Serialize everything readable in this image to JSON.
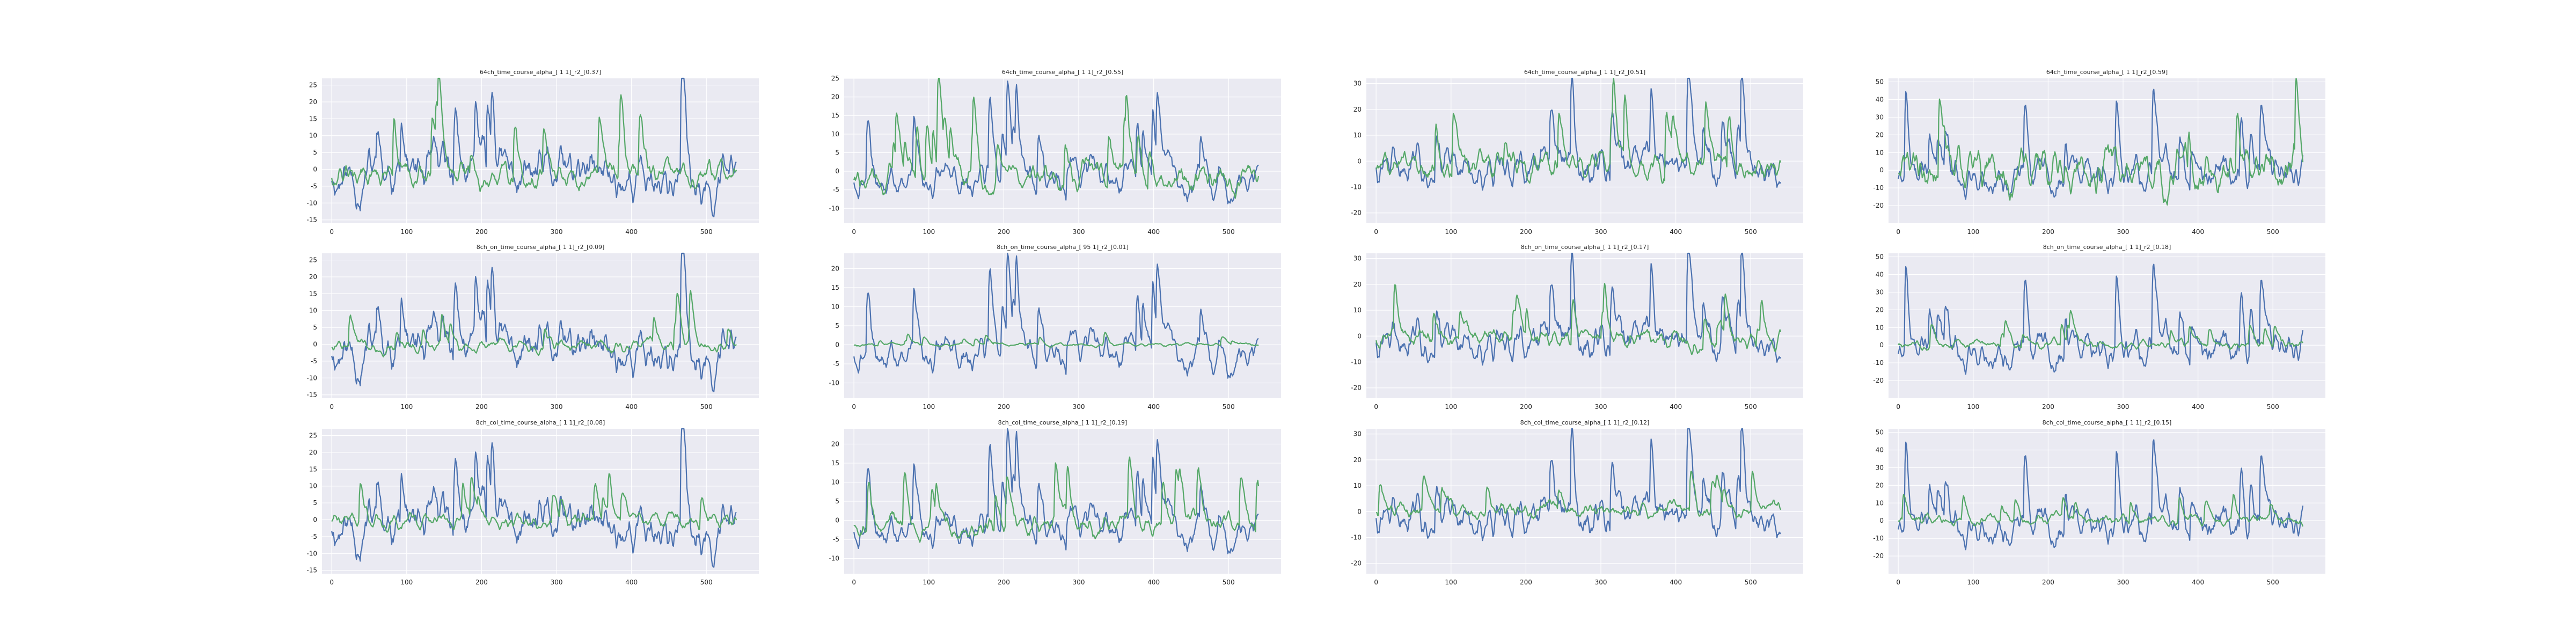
{
  "chart_data": [
    {
      "type": "line",
      "title": "64ch_time_course_alpha_[ 1 1]_r2_[0.37]",
      "xlim": [
        -13,
        570
      ],
      "ylim": [
        -16,
        27
      ],
      "xticks": [
        0,
        100,
        200,
        300,
        400,
        500
      ],
      "yticks": [
        -15,
        -10,
        -5,
        0,
        5,
        10,
        15,
        20,
        25
      ],
      "colors": [
        "#4c72b0",
        "#55a868"
      ],
      "n_points": 541,
      "series": [
        {
          "amp": 6.5,
          "mean": 0.5,
          "seed": 11
        },
        {
          "amp": 5.5,
          "mean": 0.5,
          "seed": 12
        }
      ]
    },
    {
      "type": "line",
      "title": "64ch_time_course_alpha_[ 1 1]_r2_[0.55]",
      "xlim": [
        -13,
        570
      ],
      "ylim": [
        -14,
        25
      ],
      "xticks": [
        0,
        100,
        200,
        300,
        400,
        500
      ],
      "yticks": [
        -10,
        -5,
        0,
        5,
        10,
        15,
        20,
        25
      ],
      "colors": [
        "#4c72b0",
        "#55a868"
      ],
      "n_points": 541,
      "series": [
        {
          "amp": 6,
          "mean": 0.5,
          "seed": 21
        },
        {
          "amp": 5.5,
          "mean": 1,
          "seed": 22
        }
      ]
    },
    {
      "type": "line",
      "title": "64ch_time_course_alpha_[ 1 1]_r2_[0.51]",
      "xlim": [
        -13,
        570
      ],
      "ylim": [
        -24,
        32
      ],
      "xticks": [
        0,
        100,
        200,
        300,
        400,
        500
      ],
      "yticks": [
        -20,
        -10,
        0,
        10,
        20,
        30
      ],
      "colors": [
        "#4c72b0",
        "#55a868"
      ],
      "n_points": 541,
      "series": [
        {
          "amp": 8,
          "mean": 1,
          "seed": 31
        },
        {
          "amp": 6.5,
          "mean": 1,
          "seed": 32
        }
      ]
    },
    {
      "type": "line",
      "title": "64ch_time_course_alpha_[ 1 1]_r2_[0.59]",
      "xlim": [
        -13,
        570
      ],
      "ylim": [
        -30,
        52
      ],
      "xticks": [
        0,
        100,
        200,
        300,
        400,
        500
      ],
      "yticks": [
        -20,
        -10,
        0,
        10,
        20,
        30,
        40,
        50
      ],
      "colors": [
        "#4c72b0",
        "#55a868"
      ],
      "n_points": 541,
      "series": [
        {
          "amp": 11,
          "mean": 2,
          "seed": 41
        },
        {
          "amp": 9.5,
          "mean": 2,
          "seed": 42
        }
      ]
    },
    {
      "type": "line",
      "title": "8ch_on_time_course_alpha_[ 1 1]_r2_[0.09]",
      "xlim": [
        -13,
        570
      ],
      "ylim": [
        -16,
        27
      ],
      "xticks": [
        0,
        100,
        200,
        300,
        400,
        500
      ],
      "yticks": [
        -15,
        -10,
        -5,
        0,
        5,
        10,
        15,
        20,
        25
      ],
      "colors": [
        "#4c72b0",
        "#55a868"
      ],
      "n_points": 541,
      "series": [
        {
          "amp": 6.5,
          "mean": 0.5,
          "seed": 11
        },
        {
          "amp": 2.8,
          "mean": 0.5,
          "seed": 52
        }
      ]
    },
    {
      "type": "line",
      "title": "8ch_on_time_course_alpha_[ 95 1]_r2_[0.01]",
      "xlim": [
        -13,
        570
      ],
      "ylim": [
        -14,
        24
      ],
      "xticks": [
        0,
        100,
        200,
        300,
        400,
        500
      ],
      "yticks": [
        -10,
        -5,
        0,
        5,
        10,
        15,
        20
      ],
      "colors": [
        "#4c72b0",
        "#55a868"
      ],
      "n_points": 541,
      "series": [
        {
          "amp": 6,
          "mean": 0.5,
          "seed": 21
        },
        {
          "amp": 0.6,
          "mean": 0.3,
          "seed": 62
        }
      ]
    },
    {
      "type": "line",
      "title": "8ch_on_time_course_alpha_[ 1 1]_r2_[0.17]",
      "xlim": [
        -13,
        570
      ],
      "ylim": [
        -24,
        32
      ],
      "xticks": [
        0,
        100,
        200,
        300,
        400,
        500
      ],
      "yticks": [
        -20,
        -10,
        0,
        10,
        20,
        30
      ],
      "colors": [
        "#4c72b0",
        "#55a868"
      ],
      "n_points": 541,
      "series": [
        {
          "amp": 8,
          "mean": 1,
          "seed": 31
        },
        {
          "amp": 4.5,
          "mean": 1,
          "seed": 72
        }
      ]
    },
    {
      "type": "line",
      "title": "8ch_on_time_course_alpha_[ 1 1]_r2_[0.18]",
      "xlim": [
        -13,
        570
      ],
      "ylim": [
        -30,
        52
      ],
      "xticks": [
        0,
        100,
        200,
        300,
        400,
        500
      ],
      "yticks": [
        -20,
        -10,
        0,
        10,
        20,
        30,
        40,
        50
      ],
      "colors": [
        "#4c72b0",
        "#55a868"
      ],
      "n_points": 541,
      "series": [
        {
          "amp": 11,
          "mean": 2,
          "seed": 41
        },
        {
          "amp": 3.5,
          "mean": 2,
          "seed": 82
        }
      ]
    },
    {
      "type": "line",
      "title": "8ch_col_time_course_alpha_[ 1 1]_r2_[0.08]",
      "xlim": [
        -13,
        570
      ],
      "ylim": [
        -16,
        27
      ],
      "xticks": [
        0,
        100,
        200,
        300,
        400,
        500
      ],
      "yticks": [
        -15,
        -10,
        -5,
        0,
        5,
        10,
        15,
        20,
        25
      ],
      "colors": [
        "#4c72b0",
        "#55a868"
      ],
      "n_points": 541,
      "series": [
        {
          "amp": 6.5,
          "mean": 0.5,
          "seed": 11
        },
        {
          "amp": 3,
          "mean": 1,
          "seed": 92
        }
      ]
    },
    {
      "type": "line",
      "title": "8ch_col_time_course_alpha_[ 1 1]_r2_[0.19]",
      "xlim": [
        -13,
        570
      ],
      "ylim": [
        -14,
        24
      ],
      "xticks": [
        0,
        100,
        200,
        300,
        400,
        500
      ],
      "yticks": [
        -10,
        -5,
        0,
        5,
        10,
        15,
        20
      ],
      "colors": [
        "#4c72b0",
        "#55a868"
      ],
      "n_points": 541,
      "series": [
        {
          "amp": 6,
          "mean": 0.5,
          "seed": 21
        },
        {
          "amp": 4.5,
          "mean": 1,
          "seed": 102
        }
      ]
    },
    {
      "type": "line",
      "title": "8ch_col_time_course_alpha_[ 1 1]_r2_[0.12]",
      "xlim": [
        -13,
        570
      ],
      "ylim": [
        -24,
        32
      ],
      "xticks": [
        0,
        100,
        200,
        300,
        400,
        500
      ],
      "yticks": [
        -20,
        -10,
        0,
        10,
        20,
        30
      ],
      "colors": [
        "#4c72b0",
        "#55a868"
      ],
      "n_points": 541,
      "series": [
        {
          "amp": 8,
          "mean": 1,
          "seed": 31
        },
        {
          "amp": 3.5,
          "mean": 2,
          "seed": 112
        }
      ]
    },
    {
      "type": "line",
      "title": "8ch_col_time_course_alpha_[ 1 1]_r2_[0.15]",
      "xlim": [
        -13,
        570
      ],
      "ylim": [
        -30,
        52
      ],
      "xticks": [
        0,
        100,
        200,
        300,
        400,
        500
      ],
      "yticks": [
        -20,
        -10,
        0,
        10,
        20,
        30,
        40,
        50
      ],
      "colors": [
        "#4c72b0",
        "#55a868"
      ],
      "n_points": 541,
      "series": [
        {
          "amp": 11,
          "mean": 2,
          "seed": 41
        },
        {
          "amp": 3.5,
          "mean": 2,
          "seed": 122
        }
      ]
    }
  ],
  "style": {
    "background": "#eaeaf2",
    "grid": "#ffffff",
    "text": "#262626"
  }
}
